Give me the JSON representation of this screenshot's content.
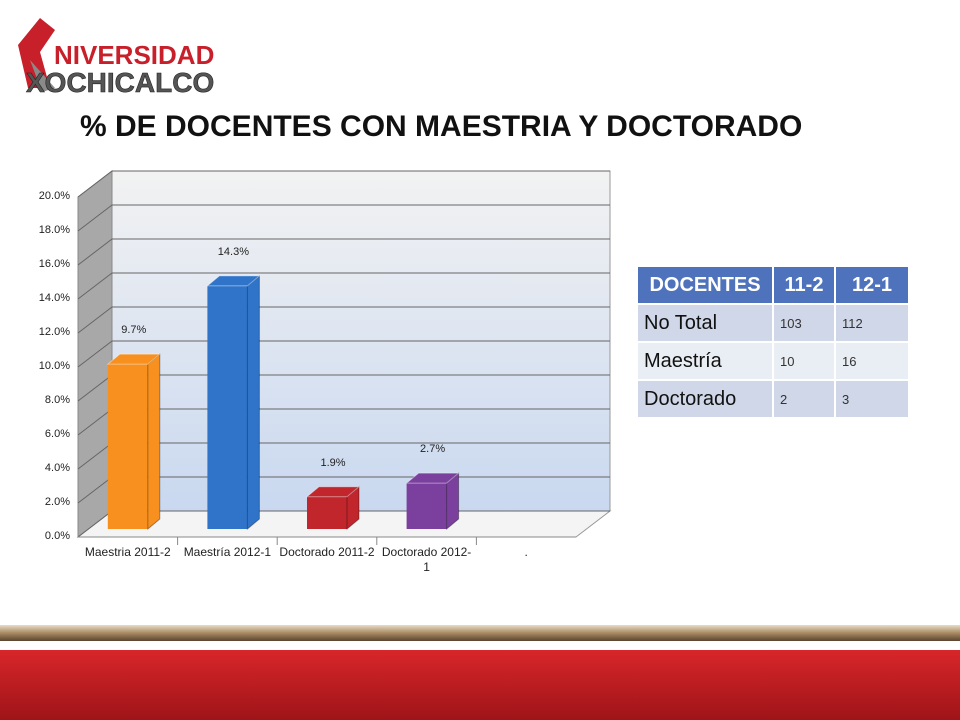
{
  "logo": {
    "line1": "NIVERSIDAD",
    "line2": "XOCHICALCO"
  },
  "chart_data": {
    "type": "bar",
    "title": "% DE DOCENTES CON MAESTRIA Y DOCTORADO",
    "categories": [
      "Maestria 2011-2",
      "Maestría 2012-1",
      "Doctorado 2011-2",
      "Doctorado 2012-1",
      "."
    ],
    "values": [
      9.7,
      14.3,
      1.9,
      2.7,
      null
    ],
    "value_labels": [
      "9.7%",
      "14.3%",
      "1.9%",
      "2.7%",
      null
    ],
    "colors": [
      "#f7901e",
      "#2f74c9",
      "#c0262c",
      "#7b3f9e",
      null
    ],
    "ylim": [
      0,
      20
    ],
    "yticks": [
      {
        "value": 0,
        "label": "0.0%"
      },
      {
        "value": 2,
        "label": "2.0%"
      },
      {
        "value": 4,
        "label": "4.0%"
      },
      {
        "value": 6,
        "label": "6.0%"
      },
      {
        "value": 8,
        "label": "8.0%"
      },
      {
        "value": 10,
        "label": "10.0%"
      },
      {
        "value": 12,
        "label": "12.0%"
      },
      {
        "value": 14,
        "label": "14.0%"
      },
      {
        "value": 16,
        "label": "16.0%"
      },
      {
        "value": 18,
        "label": "18.0%"
      },
      {
        "value": 20,
        "label": "20.0%"
      }
    ],
    "grid": true
  },
  "table": {
    "header": [
      "DOCENTES",
      "11-2",
      "12-1"
    ],
    "rows": [
      [
        "No Total",
        103,
        112
      ],
      [
        "Maestría",
        10,
        16
      ],
      [
        "Doctorado",
        2,
        3
      ]
    ]
  }
}
